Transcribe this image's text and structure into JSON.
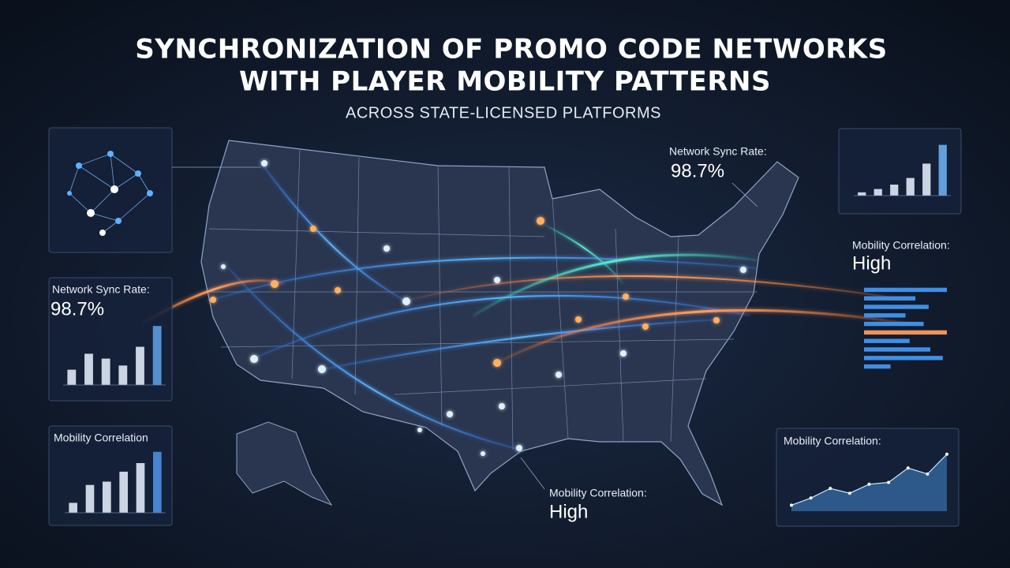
{
  "header": {
    "title": [
      "SYNCHRONIZATION OF PROMO CODE NETWORKS",
      "WITH PLAYER MOBILITY PATTERNS"
    ],
    "subtitle": "ACROSS STATE-LICENSED PLATFORMS"
  },
  "callouts": [
    {
      "label": "Network Sync Rate:",
      "value": "98.7%"
    },
    {
      "label": "Mobility Correlation:",
      "value": "High"
    }
  ],
  "panels": [
    {
      "label": "Network Sync Rate:",
      "value": "98.7%",
      "chart": {
        "type": "bar",
        "ylim": [
          0,
          100
        ],
        "values": [
          22,
          45,
          38,
          28,
          55,
          85
        ],
        "color": "#5b9be0"
      }
    },
    {
      "label": "Mobility Correlation",
      "chart": {
        "type": "bar",
        "ylim": [
          0,
          100
        ],
        "values": [
          15,
          42,
          47,
          62,
          75,
          92
        ],
        "color": "#4a8fe0"
      }
    },
    {
      "chart": {
        "type": "bar",
        "ylim": [
          0,
          100
        ],
        "values": [
          6,
          12,
          20,
          32,
          58,
          92
        ],
        "color": "#6aaef0"
      }
    },
    {
      "label": "Mobility Correlation:",
      "value": "High",
      "chart": {
        "type": "hbar",
        "ylim": [
          0,
          100
        ],
        "values": [
          100,
          62,
          78,
          50,
          72,
          100,
          55,
          80,
          95,
          32
        ],
        "color": "#3f8fe6",
        "highlight": 5,
        "highlight_color": "#f0935a"
      }
    },
    {
      "label": "Mobility Correlation:",
      "chart": {
        "type": "area",
        "ylim": [
          0,
          100
        ],
        "values": [
          10,
          22,
          38,
          30,
          45,
          48,
          72,
          62,
          95
        ],
        "color": "#4a9ff0"
      }
    }
  ]
}
